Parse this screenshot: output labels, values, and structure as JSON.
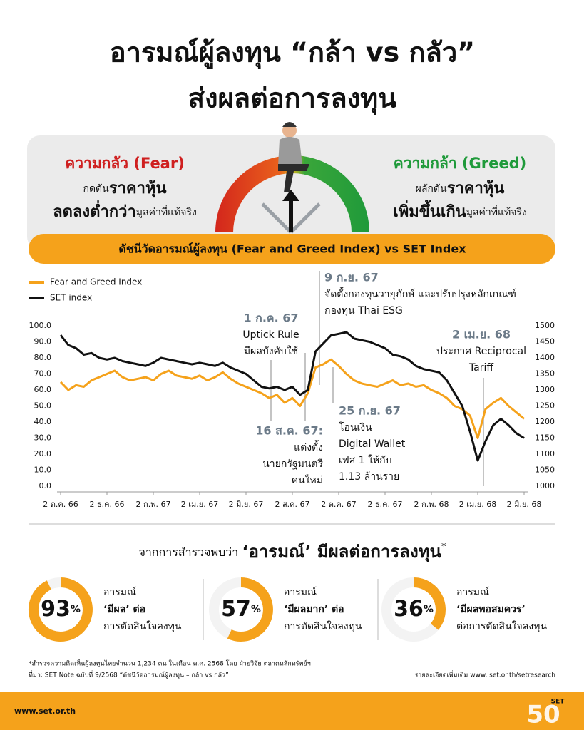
{
  "header": {
    "title_line1": "อารมณ์ผู้ลงทุน “กล้า vs กลัว”",
    "title_line2": "ส่งผลต่อการลงทุน"
  },
  "gauge": {
    "fear": {
      "title": "ความกลัว (Fear)",
      "line1": [
        "กดดัน",
        "ราคาหุ้น"
      ],
      "line2": [
        "ลดลงต่ำกว่า",
        "มูลค่าที่แท้จริง"
      ]
    },
    "greed": {
      "title": "ความกล้า (Greed)",
      "line1": [
        "ผลักดัน",
        "ราคาหุ้น"
      ],
      "line2": [
        "เพิ่มขึ้นเกิน",
        "มูลค่าที่แท้จริง"
      ]
    },
    "banner": "ดัชนีวัดอารมณ์ผู้ลงทุน (Fear and Greed Index) vs SET Index"
  },
  "chart_data": {
    "type": "line",
    "categories": [
      "2 ต.ค. 66",
      null,
      null,
      null,
      null,
      null,
      "2 ธ.ค. 66",
      null,
      null,
      null,
      null,
      null,
      "2 ก.พ. 67",
      null,
      null,
      null,
      null,
      null,
      "2 เม.ย. 67",
      null,
      null,
      null,
      null,
      null,
      "2 มิ.ย. 67",
      null,
      null,
      null,
      null,
      null,
      "2 ส.ค. 67",
      null,
      null,
      null,
      null,
      null,
      "2 ต.ค. 67",
      null,
      null,
      null,
      null,
      null,
      "2 ธ.ค. 67",
      null,
      null,
      null,
      null,
      null,
      "2 ก.พ. 68",
      null,
      null,
      null,
      null,
      null,
      "2 เม.ย. 68",
      null,
      null,
      null,
      null,
      null,
      "2 มิ.ย. 68"
    ],
    "series": [
      {
        "name": "Fear and Greed Index",
        "color": "#f5a21b",
        "values": [
          65,
          60,
          63,
          62,
          66,
          68,
          70,
          72,
          68,
          66,
          67,
          68,
          66,
          70,
          72,
          69,
          68,
          67,
          69,
          66,
          68,
          71,
          67,
          64,
          62,
          60,
          58,
          55,
          57,
          52,
          55,
          50,
          58,
          74,
          76,
          79,
          75,
          70,
          66,
          64,
          63,
          62,
          64,
          66,
          63,
          64,
          62,
          63,
          60,
          58,
          55,
          50,
          48,
          44,
          30,
          48,
          52,
          55,
          50,
          46,
          42
        ]
      },
      {
        "name": "SET index",
        "color": "#111111",
        "axis": "y2",
        "values": [
          1471,
          1440,
          1430,
          1410,
          1415,
          1400,
          1395,
          1400,
          1390,
          1385,
          1380,
          1375,
          1385,
          1400,
          1395,
          1390,
          1385,
          1380,
          1385,
          1380,
          1375,
          1385,
          1370,
          1360,
          1350,
          1330,
          1310,
          1305,
          1310,
          1300,
          1310,
          1285,
          1300,
          1420,
          1445,
          1470,
          1475,
          1480,
          1460,
          1455,
          1450,
          1440,
          1430,
          1410,
          1405,
          1395,
          1375,
          1365,
          1360,
          1355,
          1330,
          1290,
          1250,
          1170,
          1080,
          1140,
          1190,
          1210,
          1190,
          1165,
          1150
        ]
      }
    ],
    "ylim": [
      0,
      100
    ],
    "yticks": [
      {
        "value": 0,
        "label": "0.0"
      },
      {
        "value": 10,
        "label": "10.0"
      },
      {
        "value": 20,
        "label": "20.0"
      },
      {
        "value": 30,
        "label": "30.0"
      },
      {
        "value": 40,
        "label": "40.0"
      },
      {
        "value": 50,
        "label": "50.0"
      },
      {
        "value": 60,
        "label": "60.0"
      },
      {
        "value": 70,
        "label": "70.0"
      },
      {
        "value": 80,
        "label": "80.0"
      },
      {
        "value": 90,
        "label": "90.0"
      },
      {
        "value": 100,
        "label": "100.0"
      }
    ],
    "y2lim": [
      1000,
      1500
    ],
    "y2ticks": [
      1000,
      1050,
      1100,
      1150,
      1200,
      1250,
      1300,
      1350,
      1400,
      1450,
      1500
    ],
    "legend": "top-left",
    "annotations": [
      {
        "date": "9 ก.ย. 67",
        "lines": [
          "จัดตั้งกองทุนวายุภักษ์ และปรับปรุงหลักเกณฑ์",
          "กองทุน Thai ESG"
        ]
      },
      {
        "date": "1 ก.ค. 67",
        "lines": [
          "Uptick Rule",
          "มีผลบังคับใช้"
        ]
      },
      {
        "date": "16 ส.ค. 67:",
        "lines": [
          "แต่งตั้ง",
          "นายกรัฐมนตรี",
          "คนใหม่"
        ]
      },
      {
        "date": "25 ก.ย. 67",
        "lines": [
          "โอนเงิน",
          "Digital Wallet",
          "เฟส 1 ให้กับ",
          "1.13 ล้านราย"
        ]
      },
      {
        "date": "2 เม.ย. 68",
        "lines": [
          "ประกาศ Reciprocal",
          "Tariff"
        ]
      }
    ]
  },
  "survey": {
    "title": [
      "จากการสำรวจพบว่า ",
      "‘อารมณ์’ มีผลต่อการลงทุน",
      "*"
    ],
    "stats": [
      {
        "value": 93,
        "unit": "%",
        "lines": [
          "อารมณ์",
          "‘มีผล’ ต่อ",
          "การตัดสินใจลงทุน"
        ]
      },
      {
        "value": 57,
        "unit": "%",
        "lines": [
          "อารมณ์",
          "‘มีผลมาก’ ต่อ",
          "การตัดสินใจลงทุน"
        ]
      },
      {
        "value": 36,
        "unit": "%",
        "lines": [
          "อารมณ์",
          "‘มีผลพอสมควร’",
          "ต่อการตัดสินใจลงทุน"
        ]
      }
    ]
  },
  "notes": {
    "survey": "*สำรวจความคิดเห็นผู้ลงทุนไทยจำนวน 1,234 คน ในเดือน พ.ค. 2568 โดย ฝ่ายวิจัย ตลาดหลักทรัพย์ฯ",
    "source": "ที่มา: SET Note ฉบับที่ 9/2568 “ดัชนีวัดอารมณ์ผู้ลงทุน – กล้า vs กลัว”",
    "more": "รายละเอียดเพิ่มเติม www. set.or.th/setresearch"
  },
  "footer": {
    "url": "www.set.or.th",
    "logo_small": "SET",
    "logo_big": "50"
  }
}
